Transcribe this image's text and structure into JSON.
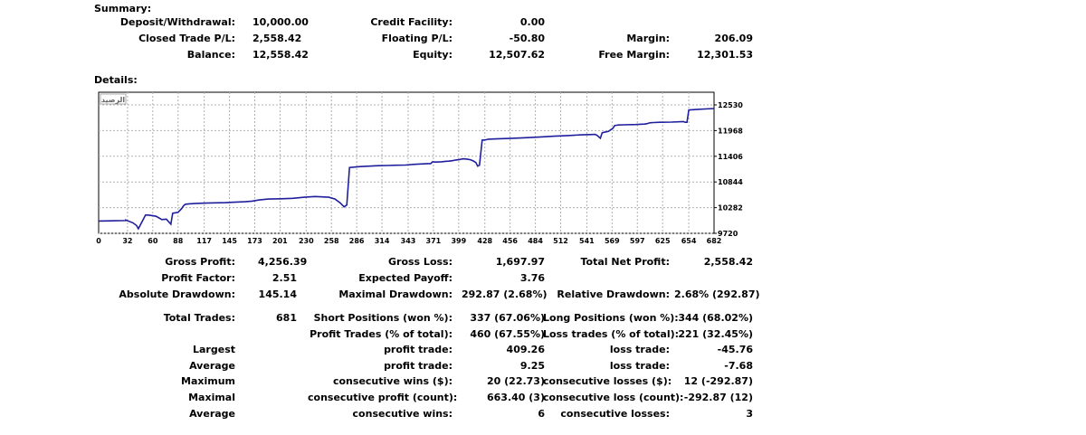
{
  "summary": {
    "heading": "Summary:",
    "deposit_label": "Deposit/Withdrawal:",
    "deposit_value": "10,000.00",
    "closed_pl_label": "Closed Trade P/L:",
    "closed_pl_value": "2,558.42",
    "balance_label": "Balance:",
    "balance_value": "12,558.42",
    "credit_label": "Credit Facility:",
    "credit_value": "0.00",
    "floating_label": "Floating P/L:",
    "floating_value": "-50.80",
    "equity_label": "Equity:",
    "equity_value": "12,507.62",
    "margin_label": "Margin:",
    "margin_value": "206.09",
    "free_margin_label": "Free Margin:",
    "free_margin_value": "12,301.53"
  },
  "details": {
    "heading": "Details:"
  },
  "chart_data": {
    "type": "line",
    "legend": "الرصيد",
    "x_ticks": [
      0,
      32,
      60,
      88,
      117,
      145,
      173,
      201,
      230,
      258,
      286,
      314,
      343,
      371,
      399,
      428,
      456,
      484,
      512,
      541,
      569,
      597,
      625,
      654,
      682
    ],
    "y_ticks": [
      9720,
      10282,
      10844,
      11406,
      11968,
      12530
    ],
    "xlim": [
      0,
      682
    ],
    "ylim": [
      9720,
      12530
    ],
    "grid": true,
    "line_color": "#1f1f9e",
    "series": [
      {
        "x": [
          0,
          30,
          30,
          38,
          42,
          44,
          52,
          55,
          62,
          64,
          70,
          75,
          80,
          82,
          88,
          92,
          94,
          96,
          100,
          108,
          118,
          140,
          150,
          162,
          170,
          178,
          188,
          202,
          215,
          228,
          240,
          255,
          262,
          268,
          272,
          275,
          278,
          290,
          300,
          310,
          320,
          330,
          340,
          350,
          360,
          365,
          368,
          370,
          374,
          380,
          384,
          388,
          392,
          396,
          400,
          404,
          408,
          412,
          415,
          418,
          420,
          422,
          425,
          427,
          430,
          432,
          440,
          455,
          470,
          480,
          490,
          505,
          520,
          535,
          545,
          550,
          552,
          556,
          558,
          560,
          565,
          570,
          572,
          574,
          576,
          582,
          595,
          605,
          608,
          610,
          612,
          615,
          622,
          635,
          648,
          650,
          652,
          654,
          662,
          672,
          682
        ],
        "y": [
          9990,
          10000,
          10010,
          9950,
          9890,
          9820,
          10120,
          10120,
          10100,
          10090,
          10020,
          10030,
          9920,
          10160,
          10180,
          10260,
          10320,
          10355,
          10365,
          10375,
          10380,
          10390,
          10400,
          10410,
          10425,
          10450,
          10470,
          10475,
          10485,
          10510,
          10525,
          10510,
          10470,
          10380,
          10300,
          10340,
          11160,
          11180,
          11190,
          11200,
          11205,
          11210,
          11215,
          11230,
          11240,
          11245,
          11245,
          11285,
          11280,
          11285,
          11295,
          11300,
          11310,
          11325,
          11335,
          11350,
          11345,
          11330,
          11305,
          11270,
          11190,
          11210,
          11760,
          11760,
          11770,
          11780,
          11785,
          11795,
          11810,
          11820,
          11830,
          11845,
          11860,
          11875,
          11880,
          11885,
          11870,
          11800,
          11920,
          11930,
          11950,
          12020,
          12080,
          12085,
          12090,
          12095,
          12100,
          12110,
          12120,
          12135,
          12140,
          12145,
          12150,
          12155,
          12165,
          12150,
          12150,
          12420,
          12430,
          12440,
          12450
        ]
      }
    ]
  },
  "results": {
    "gross_profit_label": "Gross Profit:",
    "gross_profit_value": "4,256.39",
    "gross_loss_label": "Gross Loss:",
    "gross_loss_value": "1,697.97",
    "total_net_label": "Total Net Profit:",
    "total_net_value": "2,558.42",
    "profit_factor_label": "Profit Factor:",
    "profit_factor_value": "2.51",
    "expected_payoff_label": "Expected Payoff:",
    "expected_payoff_value": "3.76",
    "abs_drawdown_label": "Absolute Drawdown:",
    "abs_drawdown_value": "145.14",
    "max_drawdown_label": "Maximal Drawdown:",
    "max_drawdown_value": "292.87 (2.68%)",
    "rel_drawdown_label": "Relative Drawdown:",
    "rel_drawdown_value": "2.68% (292.87)",
    "total_trades_label": "Total Trades:",
    "total_trades_value": "681",
    "short_label": "Short Positions (won %):",
    "short_value": "337 (67.06%)",
    "long_label": "Long Positions (won %):",
    "long_value": "344 (68.02%)",
    "profit_trades_label": "Profit Trades (% of total):",
    "profit_trades_value": "460 (67.55%)",
    "loss_trades_label": "Loss trades (% of total):",
    "loss_trades_value": "221 (32.45%)",
    "largest_label": "Largest",
    "largest_profit_label": "profit trade:",
    "largest_profit_value": "409.26",
    "largest_loss_label": "loss trade:",
    "largest_loss_value": "-45.76",
    "average_label": "Average",
    "average_profit_label": "profit trade:",
    "average_profit_value": "9.25",
    "average_loss_label": "loss trade:",
    "average_loss_value": "-7.68",
    "maximum_label": "Maximum",
    "max_consec_wins_label": "consecutive wins ($):",
    "max_consec_wins_value": "20 (22.73)",
    "max_consec_losses_label": "consecutive losses ($):",
    "max_consec_losses_value": "12 (-292.87)",
    "maximal_label": "Maximal",
    "maximal_profit_label": "consecutive profit (count):",
    "maximal_profit_value": "663.40 (3)",
    "maximal_loss_label": "consecutive loss (count):",
    "maximal_loss_value": "-292.87 (12)",
    "average2_label": "Average",
    "avg_consec_wins_label": "consecutive wins:",
    "avg_consec_wins_value": "6",
    "avg_consec_losses_label": "consecutive losses:",
    "avg_consec_losses_value": "3"
  }
}
